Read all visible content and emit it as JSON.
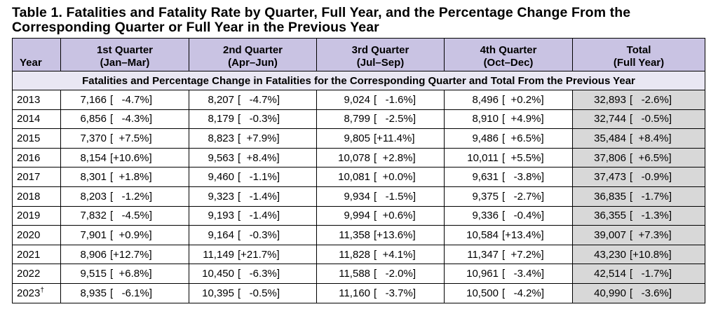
{
  "title": "Table 1. Fatalities and Fatality Rate by Quarter, Full Year, and the Percentage Change From the Corresponding Quarter or Full Year in the Previous Year",
  "headers": {
    "year": "Year",
    "q1": [
      "1st Quarter",
      "(Jan–Mar)"
    ],
    "q2": [
      "2nd Quarter",
      "(Apr–Jun)"
    ],
    "q3": [
      "3rd Quarter",
      "(Jul–Sep)"
    ],
    "q4": [
      "4th Quarter",
      "(Oct–Dec)"
    ],
    "total": [
      "Total",
      "(Full Year)"
    ]
  },
  "section_label": "Fatalities and Percentage Change in Fatalities for the Corresponding Quarter and Total From the Previous Year",
  "rows": [
    {
      "year": "2013",
      "q1": [
        "7,166",
        "[   -4.7%]"
      ],
      "q2": [
        "8,207",
        "[   -4.7%]"
      ],
      "q3": [
        "9,024",
        "[   -1.6%]"
      ],
      "q4": [
        "8,496",
        "[  +0.2%]"
      ],
      "total": [
        "32,893",
        "[   -2.6%]"
      ]
    },
    {
      "year": "2014",
      "q1": [
        "6,856",
        "[   -4.3%]"
      ],
      "q2": [
        "8,179",
        "[   -0.3%]"
      ],
      "q3": [
        "8,799",
        "[   -2.5%]"
      ],
      "q4": [
        "8,910",
        "[  +4.9%]"
      ],
      "total": [
        "32,744",
        "[   -0.5%]"
      ]
    },
    {
      "year": "2015",
      "q1": [
        "7,370",
        "[  +7.5%]"
      ],
      "q2": [
        "8,823",
        "[  +7.9%]"
      ],
      "q3": [
        "9,805",
        "[+11.4%]"
      ],
      "q4": [
        "9,486",
        "[  +6.5%]"
      ],
      "total": [
        "35,484",
        "[  +8.4%]"
      ]
    },
    {
      "year": "2016",
      "q1": [
        "8,154",
        "[+10.6%]"
      ],
      "q2": [
        "9,563",
        "[  +8.4%]"
      ],
      "q3": [
        "10,078",
        "[  +2.8%]"
      ],
      "q4": [
        "10,011",
        "[  +5.5%]"
      ],
      "total": [
        "37,806",
        "[  +6.5%]"
      ]
    },
    {
      "year": "2017",
      "q1": [
        "8,301",
        "[  +1.8%]"
      ],
      "q2": [
        "9,460",
        "[   -1.1%]"
      ],
      "q3": [
        "10,081",
        "[  +0.0%]"
      ],
      "q4": [
        "9,631",
        "[   -3.8%]"
      ],
      "total": [
        "37,473",
        "[   -0.9%]"
      ]
    },
    {
      "year": "2018",
      "q1": [
        "8,203",
        "[   -1.2%]"
      ],
      "q2": [
        "9,323",
        "[   -1.4%]"
      ],
      "q3": [
        "9,934",
        "[   -1.5%]"
      ],
      "q4": [
        "9,375",
        "[   -2.7%]"
      ],
      "total": [
        "36,835",
        "[   -1.7%]"
      ]
    },
    {
      "year": "2019",
      "q1": [
        "7,832",
        "[   -4.5%]"
      ],
      "q2": [
        "9,193",
        "[   -1.4%]"
      ],
      "q3": [
        "9,994",
        "[  +0.6%]"
      ],
      "q4": [
        "9,336",
        "[   -0.4%]"
      ],
      "total": [
        "36,355",
        "[   -1.3%]"
      ]
    },
    {
      "year": "2020",
      "q1": [
        "7,901",
        "[  +0.9%]"
      ],
      "q2": [
        "9,164",
        "[   -0.3%]"
      ],
      "q3": [
        "11,358",
        "[+13.6%]"
      ],
      "q4": [
        "10,584",
        "[+13.4%]"
      ],
      "total": [
        "39,007",
        "[  +7.3%]"
      ]
    },
    {
      "year": "2021",
      "q1": [
        "8,906",
        "[+12.7%]"
      ],
      "q2": [
        "11,149",
        "[+21.7%]"
      ],
      "q3": [
        "11,828",
        "[  +4.1%]"
      ],
      "q4": [
        "11,347",
        "[  +7.2%]"
      ],
      "total": [
        "43,230",
        "[+10.8%]"
      ]
    },
    {
      "year": "2022",
      "q1": [
        "9,515",
        "[  +6.8%]"
      ],
      "q2": [
        "10,450",
        "[   -6.3%]"
      ],
      "q3": [
        "11,588",
        "[   -2.0%]"
      ],
      "q4": [
        "10,961",
        "[   -3.4%]"
      ],
      "total": [
        "42,514",
        "[   -1.7%]"
      ]
    },
    {
      "year": "2023",
      "year_mark": "†",
      "q1": [
        "8,935",
        "[   -6.1%]"
      ],
      "q2": [
        "10,395",
        "[   -0.5%]"
      ],
      "q3": [
        "11,160",
        "[   -3.7%]"
      ],
      "q4": [
        "10,500",
        "[   -4.2%]"
      ],
      "total": [
        "40,990",
        "[   -3.6%]"
      ]
    }
  ],
  "colors": {
    "header_bg": "#c9c3e3",
    "section_bg": "#e9e7f3",
    "total_bg": "#d8d8d8"
  }
}
